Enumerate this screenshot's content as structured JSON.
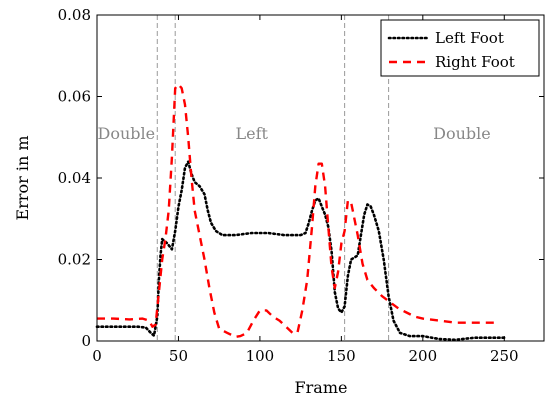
{
  "chart_data": {
    "type": "line",
    "xlabel": "Frame",
    "ylabel": "Error in m",
    "xlim": [
      0,
      275
    ],
    "ylim": [
      0,
      0.08
    ],
    "xticks": [
      0,
      50,
      100,
      150,
      200,
      250
    ],
    "yticks": [
      0,
      0.02,
      0.04,
      0.06,
      0.08
    ],
    "ytick_labels": [
      "0",
      "0.02",
      "0.04",
      "0.06",
      "0.08"
    ],
    "grid": false,
    "legend_position": "top-right",
    "phase_boundaries": [
      37,
      48,
      152,
      179
    ],
    "phase_labels": [
      {
        "text": "Double",
        "x": 18,
        "y": 0.051
      },
      {
        "text": "Left",
        "x": 95,
        "y": 0.051
      },
      {
        "text": "Double",
        "x": 224,
        "y": 0.051
      }
    ],
    "series": [
      {
        "name": "Left Foot",
        "color": "#000000",
        "style": "dotted",
        "points": [
          [
            0,
            0.0035
          ],
          [
            10,
            0.0035
          ],
          [
            20,
            0.0035
          ],
          [
            25,
            0.0035
          ],
          [
            30,
            0.0033
          ],
          [
            33,
            0.002
          ],
          [
            35,
            0.0013
          ],
          [
            37,
            0.006
          ],
          [
            38,
            0.015
          ],
          [
            39,
            0.021
          ],
          [
            40,
            0.025
          ],
          [
            43,
            0.024
          ],
          [
            46,
            0.0225
          ],
          [
            48,
            0.027
          ],
          [
            50,
            0.033
          ],
          [
            52,
            0.037
          ],
          [
            54,
            0.0425
          ],
          [
            56,
            0.044
          ],
          [
            58,
            0.041
          ],
          [
            60,
            0.039
          ],
          [
            63,
            0.038
          ],
          [
            66,
            0.036
          ],
          [
            68,
            0.032
          ],
          [
            70,
            0.029
          ],
          [
            73,
            0.027
          ],
          [
            77,
            0.026
          ],
          [
            85,
            0.026
          ],
          [
            95,
            0.0265
          ],
          [
            105,
            0.0265
          ],
          [
            115,
            0.026
          ],
          [
            125,
            0.026
          ],
          [
            128,
            0.0265
          ],
          [
            130,
            0.029
          ],
          [
            132,
            0.032
          ],
          [
            134,
            0.0345
          ],
          [
            136,
            0.035
          ],
          [
            138,
            0.033
          ],
          [
            140,
            0.031
          ],
          [
            142,
            0.028
          ],
          [
            144,
            0.022
          ],
          [
            146,
            0.012
          ],
          [
            148,
            0.008
          ],
          [
            150,
            0.007
          ],
          [
            152,
            0.0085
          ],
          [
            154,
            0.016
          ],
          [
            156,
            0.02
          ],
          [
            158,
            0.0205
          ],
          [
            160,
            0.021
          ],
          [
            162,
            0.026
          ],
          [
            164,
            0.031
          ],
          [
            166,
            0.0335
          ],
          [
            168,
            0.033
          ],
          [
            170,
            0.031
          ],
          [
            173,
            0.027
          ],
          [
            176,
            0.02
          ],
          [
            179,
            0.011
          ],
          [
            182,
            0.005
          ],
          [
            186,
            0.002
          ],
          [
            192,
            0.0012
          ],
          [
            200,
            0.0012
          ],
          [
            210,
            0.0005
          ],
          [
            220,
            0.0003
          ],
          [
            232,
            0.0008
          ],
          [
            240,
            0.0008
          ],
          [
            250,
            0.0008
          ]
        ]
      },
      {
        "name": "Right Foot",
        "color": "#ff0000",
        "style": "dashed",
        "points": [
          [
            0,
            0.0055
          ],
          [
            10,
            0.0055
          ],
          [
            20,
            0.0053
          ],
          [
            28,
            0.0055
          ],
          [
            32,
            0.005
          ],
          [
            34,
            0.0035
          ],
          [
            36,
            0.004
          ],
          [
            38,
            0.012
          ],
          [
            40,
            0.02
          ],
          [
            42,
            0.025
          ],
          [
            44,
            0.032
          ],
          [
            46,
            0.045
          ],
          [
            48,
            0.062
          ],
          [
            50,
            0.063
          ],
          [
            52,
            0.062
          ],
          [
            54,
            0.058
          ],
          [
            56,
            0.05
          ],
          [
            58,
            0.04
          ],
          [
            60,
            0.032
          ],
          [
            63,
            0.026
          ],
          [
            66,
            0.02
          ],
          [
            69,
            0.013
          ],
          [
            72,
            0.007
          ],
          [
            75,
            0.003
          ],
          [
            80,
            0.002
          ],
          [
            85,
            0.001
          ],
          [
            88,
            0.0012
          ],
          [
            92,
            0.002
          ],
          [
            96,
            0.005
          ],
          [
            100,
            0.0075
          ],
          [
            104,
            0.0075
          ],
          [
            108,
            0.006
          ],
          [
            112,
            0.005
          ],
          [
            116,
            0.0035
          ],
          [
            120,
            0.002
          ],
          [
            123,
            0.002
          ],
          [
            126,
            0.0075
          ],
          [
            129,
            0.015
          ],
          [
            132,
            0.028
          ],
          [
            134,
            0.038
          ],
          [
            136,
            0.0435
          ],
          [
            138,
            0.0435
          ],
          [
            140,
            0.038
          ],
          [
            142,
            0.028
          ],
          [
            144,
            0.018
          ],
          [
            146,
            0.013
          ],
          [
            148,
            0.017
          ],
          [
            150,
            0.024
          ],
          [
            152,
            0.027
          ],
          [
            154,
            0.0345
          ],
          [
            156,
            0.034
          ],
          [
            158,
            0.03
          ],
          [
            160,
            0.026
          ],
          [
            163,
            0.019
          ],
          [
            166,
            0.015
          ],
          [
            170,
            0.013
          ],
          [
            175,
            0.011
          ],
          [
            180,
            0.0095
          ],
          [
            185,
            0.008
          ],
          [
            190,
            0.007
          ],
          [
            195,
            0.006
          ],
          [
            200,
            0.0055
          ],
          [
            210,
            0.005
          ],
          [
            220,
            0.0045
          ],
          [
            230,
            0.0045
          ],
          [
            240,
            0.0045
          ],
          [
            245,
            0.0045
          ]
        ]
      }
    ]
  }
}
